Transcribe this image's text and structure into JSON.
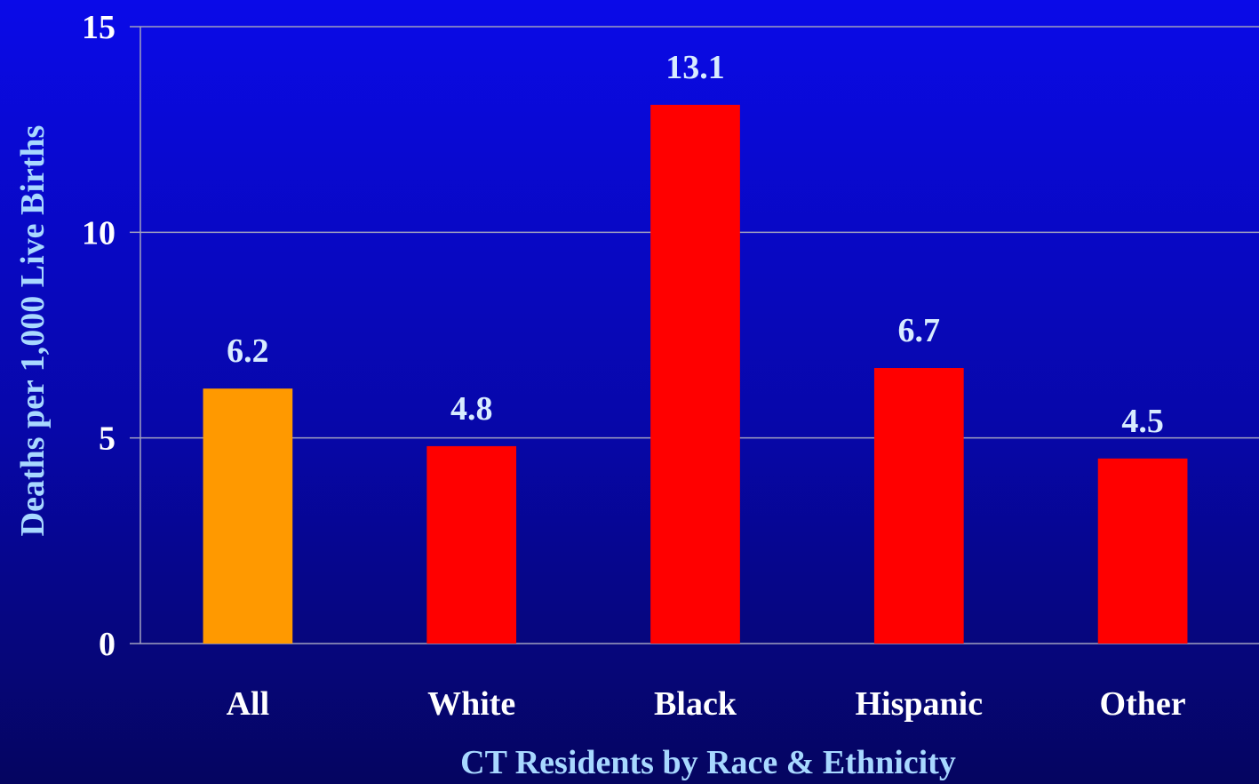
{
  "chart_data": {
    "type": "bar",
    "categories": [
      "All",
      "White",
      "Black",
      "Hispanic",
      "Other"
    ],
    "values": [
      6.2,
      4.8,
      13.1,
      6.7,
      4.5
    ],
    "data_labels": [
      "6.2",
      "4.8",
      "13.1",
      "6.7",
      "4.5"
    ],
    "bar_colors": [
      "#ff9900",
      "#ff0000",
      "#ff0000",
      "#ff0000",
      "#ff0000"
    ],
    "xlabel": "CT Residents by Race & Ethnicity",
    "ylabel": "Deaths per 1,000 Live Births",
    "ylim": [
      0,
      15
    ],
    "yticks": [
      0,
      5,
      10,
      15
    ],
    "grid": true,
    "colors": {
      "axis_title": "#a8d8ff",
      "data_label": "#d8ecff",
      "tick_label": "#ffffff",
      "gridline": "#a0a0c0"
    }
  }
}
